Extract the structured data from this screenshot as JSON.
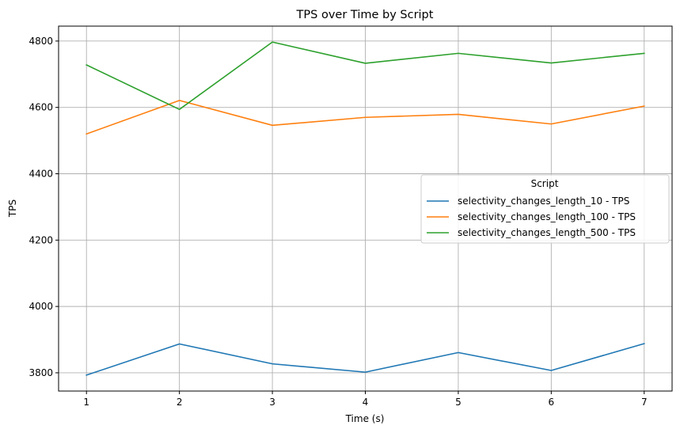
{
  "chart_data": {
    "type": "line",
    "title": "TPS over Time by Script",
    "xlabel": "Time (s)",
    "ylabel": "TPS",
    "x": [
      1,
      2,
      3,
      4,
      5,
      6,
      7
    ],
    "xticks": [
      1,
      2,
      3,
      4,
      5,
      6,
      7
    ],
    "yticks": [
      3800,
      4000,
      4200,
      4400,
      4600,
      4800
    ],
    "xlim": [
      0.7,
      7.3
    ],
    "ylim": [
      3745,
      4845
    ],
    "grid": true,
    "legend": {
      "title": "Script",
      "placement": "center-right"
    },
    "series": [
      {
        "name": "selectivity_changes_length_10 - TPS",
        "color": "#1f77b4",
        "values": [
          3793,
          3887,
          3827,
          3802,
          3861,
          3807,
          3888
        ]
      },
      {
        "name": "selectivity_changes_length_100 - TPS",
        "color": "#ff7f0e",
        "values": [
          4520,
          4621,
          4546,
          4570,
          4579,
          4550,
          4604
        ]
      },
      {
        "name": "selectivity_changes_length_500 - TPS",
        "color": "#2ca02c",
        "values": [
          4728,
          4594,
          4797,
          4733,
          4763,
          4734,
          4763
        ]
      }
    ]
  }
}
